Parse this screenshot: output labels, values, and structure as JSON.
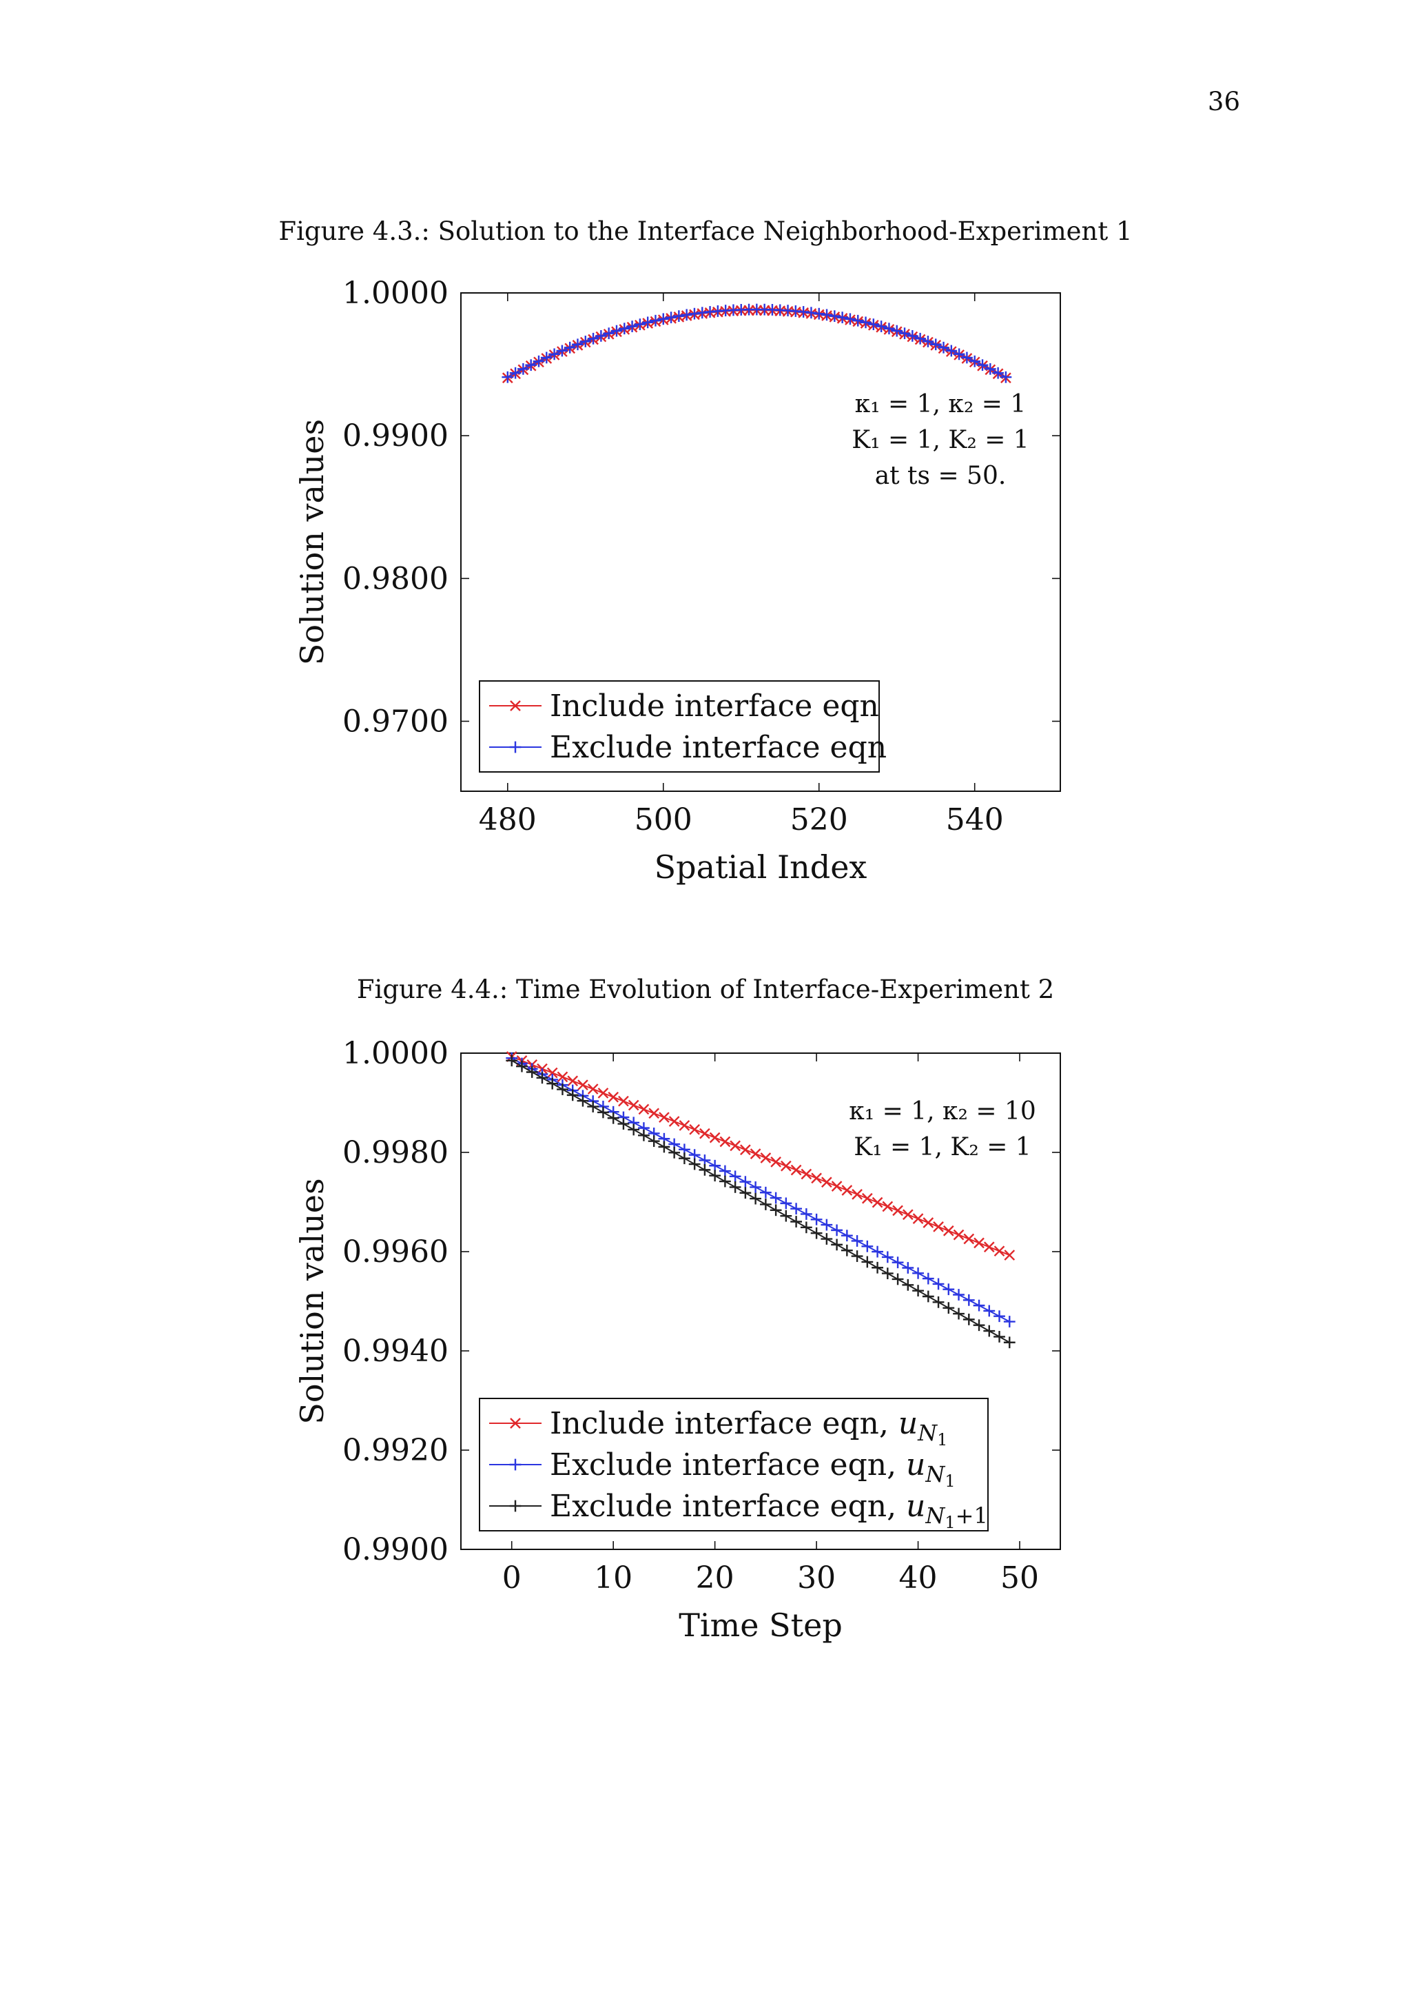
{
  "page": {
    "number": "36",
    "figures": [
      {
        "caption": "Figure 4.3.: Solution to the Interface Neighborhood-Experiment 1",
        "annotation": [
          "κ₁ = 1, κ₂ = 1",
          "K₁ = 1, K₂ = 1",
          "at ts = 50."
        ]
      },
      {
        "caption": "Figure 4.4.: Time Evolution of Interface-Experiment 2",
        "annotation": [
          "κ₁ = 1, κ₂ = 10",
          "K₁ = 1, K₂ = 1"
        ]
      }
    ]
  },
  "colors": {
    "red": "#e0282b",
    "blue": "#2b36e0",
    "black": "#222222",
    "frame": "#111111"
  },
  "chart_data": [
    {
      "type": "line",
      "xlabel": "Spatial Index",
      "ylabel": "Solution values",
      "xlim": [
        474,
        551
      ],
      "ylim": [
        0.9651,
        1.0
      ],
      "xticks": [
        480,
        500,
        520,
        540
      ],
      "xtick_labels": [
        "480",
        "500",
        "520",
        "540"
      ],
      "yticks": [
        0.97,
        0.98,
        0.99,
        1.0
      ],
      "ytick_labels": [
        "0.9700",
        "0.9800",
        "0.9900",
        "1.0000"
      ],
      "legend_position": "bottom-left",
      "x": {
        "start": 480,
        "end": 544,
        "step": 1
      },
      "series": [
        {
          "name": "Include interface eqn",
          "marker": "x",
          "color": "#e0282b",
          "curve": "parabola",
          "vertex": [
            512,
            0.99878
          ],
          "endpoints": [
            [
              480,
              0.99405
            ],
            [
              544,
              0.99405
            ]
          ]
        },
        {
          "name": "Exclude interface eqn",
          "marker": "+",
          "color": "#2b36e0",
          "curve": "parabola",
          "vertex": [
            512,
            0.99884
          ],
          "endpoints": [
            [
              480,
              0.9941
            ],
            [
              544,
              0.9941
            ]
          ]
        }
      ]
    },
    {
      "type": "line",
      "xlabel": "Time Step",
      "ylabel": "Solution values",
      "xlim": [
        -5,
        54
      ],
      "ylim": [
        0.99,
        1.0
      ],
      "xticks": [
        0,
        10,
        20,
        30,
        40,
        50
      ],
      "xtick_labels": [
        "0",
        "10",
        "20",
        "30",
        "40",
        "50"
      ],
      "yticks": [
        0.99,
        0.992,
        0.994,
        0.996,
        0.998,
        1.0
      ],
      "ytick_labels": [
        "0.9900",
        "0.9920",
        "0.9940",
        "0.9960",
        "0.9980",
        "1.0000"
      ],
      "legend_position": "bottom-left",
      "x": {
        "start": 0,
        "end": 49,
        "step": 1
      },
      "series": [
        {
          "name": "Include interface eqn, ",
          "sub": "N",
          "subsub": "1",
          "subextra": "",
          "marker": "x",
          "color": "#e0282b",
          "curve": "linear",
          "endpoints": [
            [
              0,
              0.99993
            ],
            [
              49,
              0.99593
            ]
          ]
        },
        {
          "name": "Exclude interface eqn, ",
          "sub": "N",
          "subsub": "1",
          "subextra": "",
          "marker": "+",
          "color": "#2b36e0",
          "curve": "linear",
          "endpoints": [
            [
              0,
              0.9999
            ],
            [
              49,
              0.99459
            ]
          ]
        },
        {
          "name": "Exclude interface eqn, ",
          "sub": "N",
          "subsub": "1",
          "subextra": "+1",
          "marker": "+",
          "color": "#222222",
          "curve": "linear",
          "endpoints": [
            [
              0,
              0.99985
            ],
            [
              49,
              0.99417
            ]
          ]
        }
      ]
    }
  ]
}
